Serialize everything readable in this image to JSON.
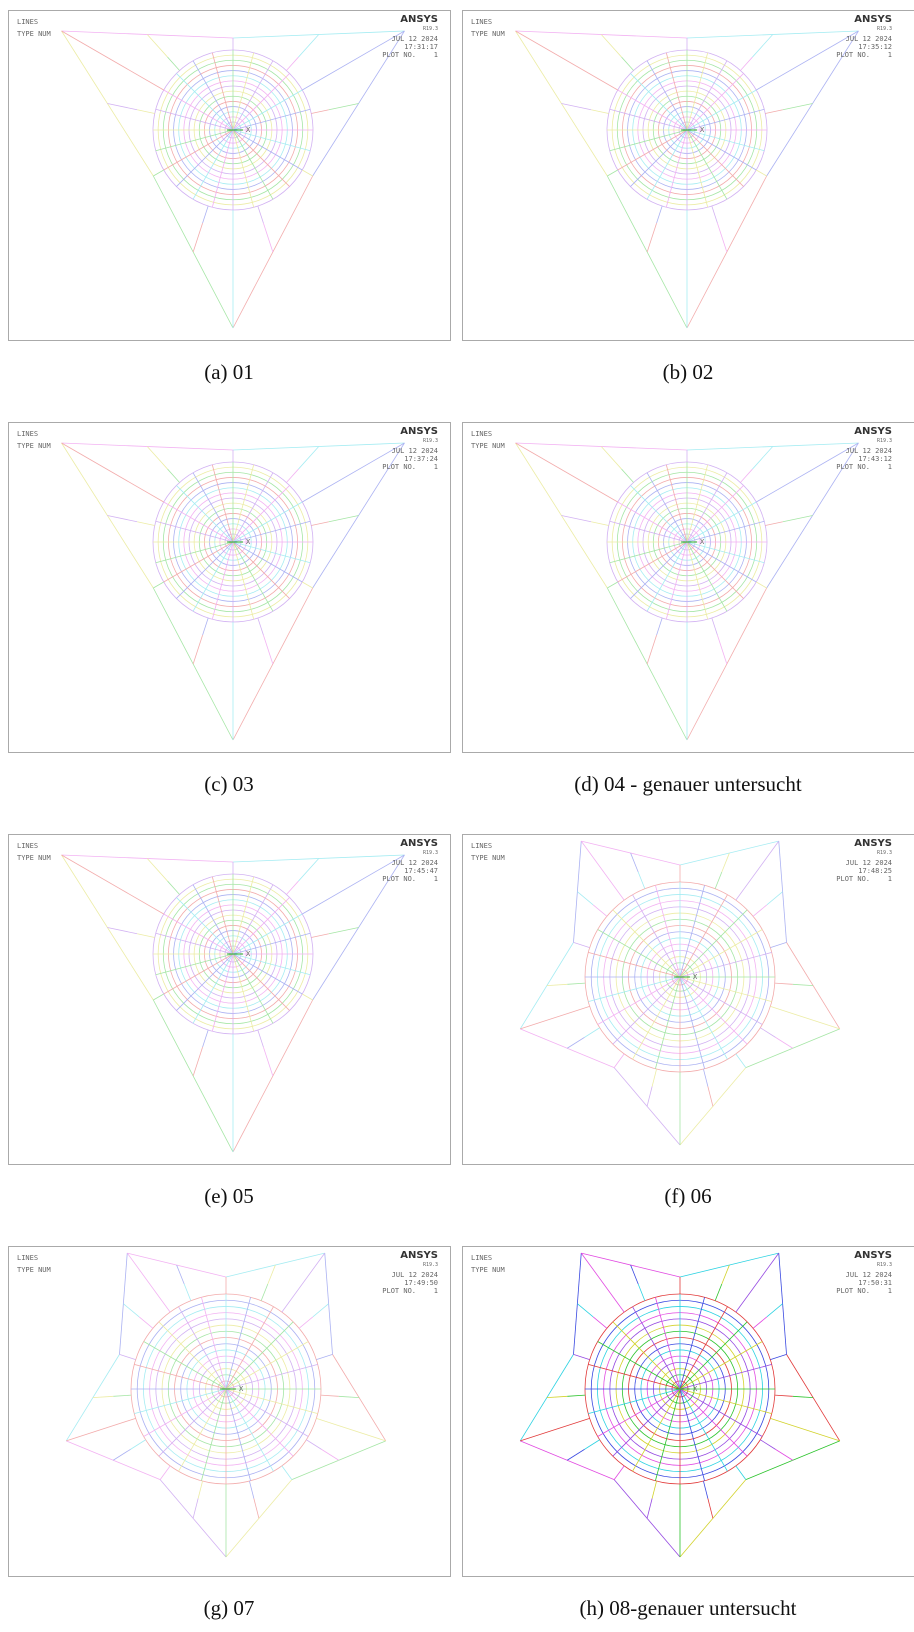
{
  "panels": [
    {
      "label": "(a)",
      "caption": "01",
      "logo": "ANSYS",
      "release": "R19.3",
      "lines": "LINES",
      "type": "TYPE NUM",
      "date": "JUL 12 2024",
      "time": "17:31:17",
      "plot": "PLOT NO.",
      "plot_no": "1",
      "axis": "X"
    },
    {
      "label": "(b)",
      "caption": "02",
      "logo": "ANSYS",
      "release": "R19.3",
      "lines": "LINES",
      "type": "TYPE NUM",
      "date": "JUL 12 2024",
      "time": "17:35:12",
      "plot": "PLOT NO.",
      "plot_no": "1",
      "axis": "X"
    },
    {
      "label": "(c)",
      "caption": "03",
      "logo": "ANSYS",
      "release": "R19.3",
      "lines": "LINES",
      "type": "TYPE NUM",
      "date": "JUL 12 2024",
      "time": "17:37:24",
      "plot": "PLOT NO.",
      "plot_no": "1",
      "axis": "X"
    },
    {
      "label": "(d)",
      "caption": "04 - genauer untersucht",
      "logo": "ANSYS",
      "release": "R19.3",
      "lines": "LINES",
      "type": "TYPE NUM",
      "date": "JUL 12 2024",
      "time": "17:43:12",
      "plot": "PLOT NO.",
      "plot_no": "1",
      "axis": "X"
    },
    {
      "label": "(e)",
      "caption": "05",
      "logo": "ANSYS",
      "release": "R19.3",
      "lines": "LINES",
      "type": "TYPE NUM",
      "date": "JUL 12 2024",
      "time": "17:45:47",
      "plot": "PLOT NO.",
      "plot_no": "1",
      "axis": "X"
    },
    {
      "label": "(f)",
      "caption": "06",
      "logo": "ANSYS",
      "release": "R19.3",
      "lines": "LINES",
      "type": "TYPE NUM",
      "date": "JUL 12 2024",
      "time": "17:48:25",
      "plot": "PLOT NO.",
      "plot_no": "1",
      "axis": "X"
    },
    {
      "label": "(g)",
      "caption": "07",
      "logo": "ANSYS",
      "release": "R19.3",
      "lines": "LINES",
      "type": "TYPE NUM",
      "date": "JUL 12 2024",
      "time": "17:49:50",
      "plot": "PLOT NO.",
      "plot_no": "1",
      "axis": "X"
    },
    {
      "label": "(h)",
      "caption": "08-genauer untersucht",
      "logo": "ANSYS",
      "release": "R19.3",
      "lines": "LINES",
      "type": "TYPE NUM",
      "date": "JUL 12 2024",
      "time": "17:50:31",
      "plot": "PLOT NO.",
      "plot_no": "1",
      "axis": "X"
    }
  ]
}
